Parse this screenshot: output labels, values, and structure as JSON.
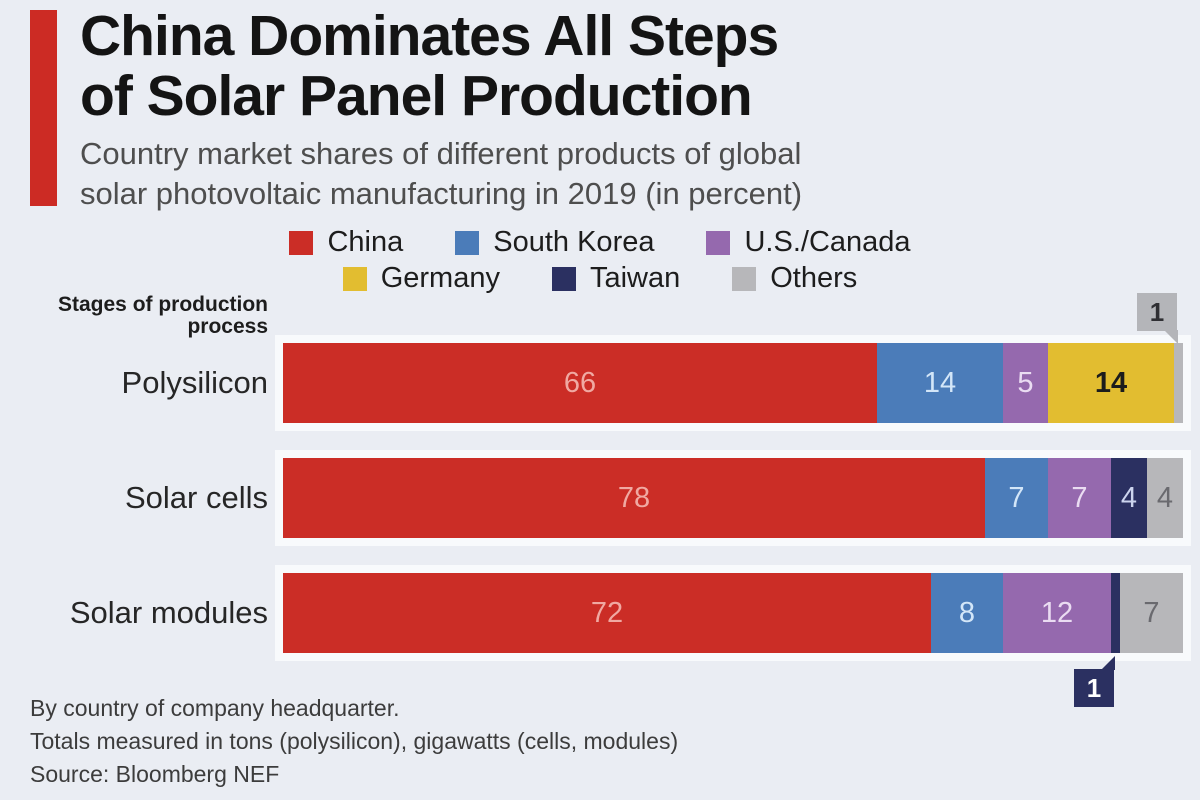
{
  "header": {
    "title_line1": "China Dominates All Steps",
    "title_line2": "of Solar Panel Production",
    "subtitle_line1": "Country market shares of different products of global",
    "subtitle_line2": "solar photovoltaic manufacturing in 2019 (in percent)"
  },
  "legend": {
    "rows": [
      [
        "China",
        "South Korea",
        "U.S./Canada"
      ],
      [
        "Germany",
        "Taiwan",
        "Others"
      ]
    ]
  },
  "chart_data": {
    "type": "bar",
    "stacked": true,
    "orientation": "horizontal",
    "units": "percent",
    "total": 100,
    "axis_label": "Stages of production process",
    "categories": [
      "Polysilicon",
      "Solar cells",
      "Solar modules"
    ],
    "series": [
      {
        "name": "China",
        "color": "#cb2d26",
        "label_color": "#f0a9a2"
      },
      {
        "name": "South Korea",
        "color": "#4b7cb9",
        "label_color": "#d3e6f8"
      },
      {
        "name": "U.S./Canada",
        "color": "#9569ae",
        "label_color": "#eadcf2"
      },
      {
        "name": "Germany",
        "color": "#e2bd30",
        "label_color": "#1c1c1c",
        "label_bold": true
      },
      {
        "name": "Taiwan",
        "color": "#2b3061",
        "label_color": "#ccd4ee"
      },
      {
        "name": "Others",
        "color": "#b7b7ba",
        "label_color": "#6a6a6f"
      }
    ],
    "rows": [
      {
        "category": "Polysilicon",
        "segments": [
          {
            "name": "China",
            "value": 66
          },
          {
            "name": "South Korea",
            "value": 14
          },
          {
            "name": "U.S./Canada",
            "value": 5
          },
          {
            "name": "Germany",
            "value": 14
          },
          {
            "name": "Others",
            "value": 1,
            "callout": "above"
          }
        ]
      },
      {
        "category": "Solar cells",
        "segments": [
          {
            "name": "China",
            "value": 78
          },
          {
            "name": "South Korea",
            "value": 7
          },
          {
            "name": "U.S./Canada",
            "value": 7
          },
          {
            "name": "Taiwan",
            "value": 4
          },
          {
            "name": "Others",
            "value": 4
          }
        ]
      },
      {
        "category": "Solar modules",
        "segments": [
          {
            "name": "China",
            "value": 72
          },
          {
            "name": "South Korea",
            "value": 8
          },
          {
            "name": "U.S./Canada",
            "value": 12
          },
          {
            "name": "Taiwan",
            "value": 1,
            "callout": "below"
          },
          {
            "name": "Others",
            "value": 7
          }
        ]
      }
    ]
  },
  "footer": {
    "note_line1": "By country of company headquarter.",
    "note_line2": "Totals measured in tons (polysilicon), gigawatts (cells, modules)",
    "source": "Source: Bloomberg NEF"
  },
  "colors": {
    "background": "#eaedf3",
    "accent_bar": "#cc2b24",
    "row_strip": "#f8fafc",
    "callout_above_bg": "#b4b5b9",
    "callout_above_text": "#2f2f33",
    "callout_below_bg": "#2b3061",
    "callout_below_text": "#ffffff"
  }
}
